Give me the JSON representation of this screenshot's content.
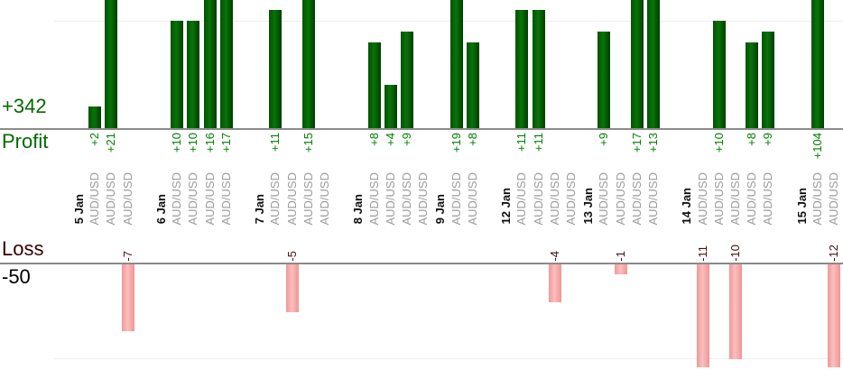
{
  "chart_data": {
    "type": "bar",
    "orientation": "vertical",
    "legend": "none",
    "grid": "horizontal-light",
    "profit_axis": {
      "total": "+342",
      "label": "Profit",
      "gridline_value": 10
    },
    "loss_axis": {
      "label": "Loss",
      "total": "-50",
      "gridline_value": -10
    },
    "groups": [
      {
        "date": "5 Jan",
        "gap_after": true,
        "trades": [
          {
            "symbol": "AUD/USD",
            "value": 2,
            "label": "+2"
          },
          {
            "symbol": "AUD/USD",
            "value": 21,
            "label": "+21"
          },
          {
            "symbol": "AUD/USD",
            "value": -7,
            "label": "-7"
          }
        ]
      },
      {
        "date": "6 Jan",
        "gap_after": true,
        "trades": [
          {
            "symbol": "AUD/USD",
            "value": 10,
            "label": "+10"
          },
          {
            "symbol": "AUD/USD",
            "value": 10,
            "label": "+10"
          },
          {
            "symbol": "AUD/USD",
            "value": 16,
            "label": "+16"
          },
          {
            "symbol": "AUD/USD",
            "value": 17,
            "label": "+17"
          }
        ]
      },
      {
        "date": "7 Jan",
        "gap_after": true,
        "trades": [
          {
            "symbol": "AUD/USD",
            "value": 11,
            "label": "+11"
          },
          {
            "symbol": "AUD/USD",
            "value": -5,
            "label": "-5"
          },
          {
            "symbol": "AUD/USD",
            "value": 15,
            "label": "+15"
          },
          {
            "symbol": "AUD/USD",
            "value": 0,
            "label": ""
          }
        ]
      },
      {
        "date": "8 Jan",
        "gap_after": false,
        "trades": [
          {
            "symbol": "AUD/USD",
            "value": 8,
            "label": "+8"
          },
          {
            "symbol": "AUD/USD",
            "value": 4,
            "label": "+4"
          },
          {
            "symbol": "AUD/USD",
            "value": 9,
            "label": "+9"
          },
          {
            "symbol": "AUD/USD",
            "value": 0,
            "label": ""
          }
        ]
      },
      {
        "date": "9 Jan",
        "gap_after": true,
        "trades": [
          {
            "symbol": "AUD/USD",
            "value": 19,
            "label": "+19"
          },
          {
            "symbol": "AUD/USD",
            "value": 8,
            "label": "+8"
          }
        ]
      },
      {
        "date": "12 Jan",
        "gap_after": false,
        "trades": [
          {
            "symbol": "AUD/USD",
            "value": 11,
            "label": "+11"
          },
          {
            "symbol": "AUD/USD",
            "value": 11,
            "label": "+11"
          },
          {
            "symbol": "AUD/USD",
            "value": -4,
            "label": "-4"
          },
          {
            "symbol": "AUD/USD",
            "value": 0,
            "label": ""
          }
        ]
      },
      {
        "date": "13 Jan",
        "gap_after": true,
        "trades": [
          {
            "symbol": "AUD/USD",
            "value": 9,
            "label": "+9"
          },
          {
            "symbol": "AUD/USD",
            "value": -1,
            "label": "-1"
          },
          {
            "symbol": "AUD/USD",
            "value": 17,
            "label": "+17"
          },
          {
            "symbol": "AUD/USD",
            "value": 13,
            "label": "+13"
          }
        ]
      },
      {
        "date": "14 Jan",
        "gap_after": true,
        "trades": [
          {
            "symbol": "AUD/USD",
            "value": -11,
            "label": "-11"
          },
          {
            "symbol": "AUD/USD",
            "value": 10,
            "label": "+10"
          },
          {
            "symbol": "AUD/USD",
            "value": -10,
            "label": "-10"
          },
          {
            "symbol": "AUD/USD",
            "value": 8,
            "label": "+8"
          },
          {
            "symbol": "AUD/USD",
            "value": 9,
            "label": "+9"
          }
        ]
      },
      {
        "date": "15 Jan",
        "gap_after": false,
        "trades": [
          {
            "symbol": "AUD/USD",
            "value": 104,
            "label": "+104"
          },
          {
            "symbol": "AUD/USD",
            "value": -12,
            "label": "-12"
          }
        ]
      }
    ],
    "colors": {
      "profit_bar": "#066a06",
      "loss_bar": "#f8b0b0",
      "profit_value_text": "#008000",
      "loss_value_text": "#441111",
      "profit_axis_text": "#006a00",
      "loss_axis_text": "#330000",
      "loss_total_text": "#000000",
      "date_text": "#111111",
      "symbol_text": "#9b9b9b",
      "axis_line": "#8a8a8a",
      "gridline": "#ededed"
    }
  }
}
